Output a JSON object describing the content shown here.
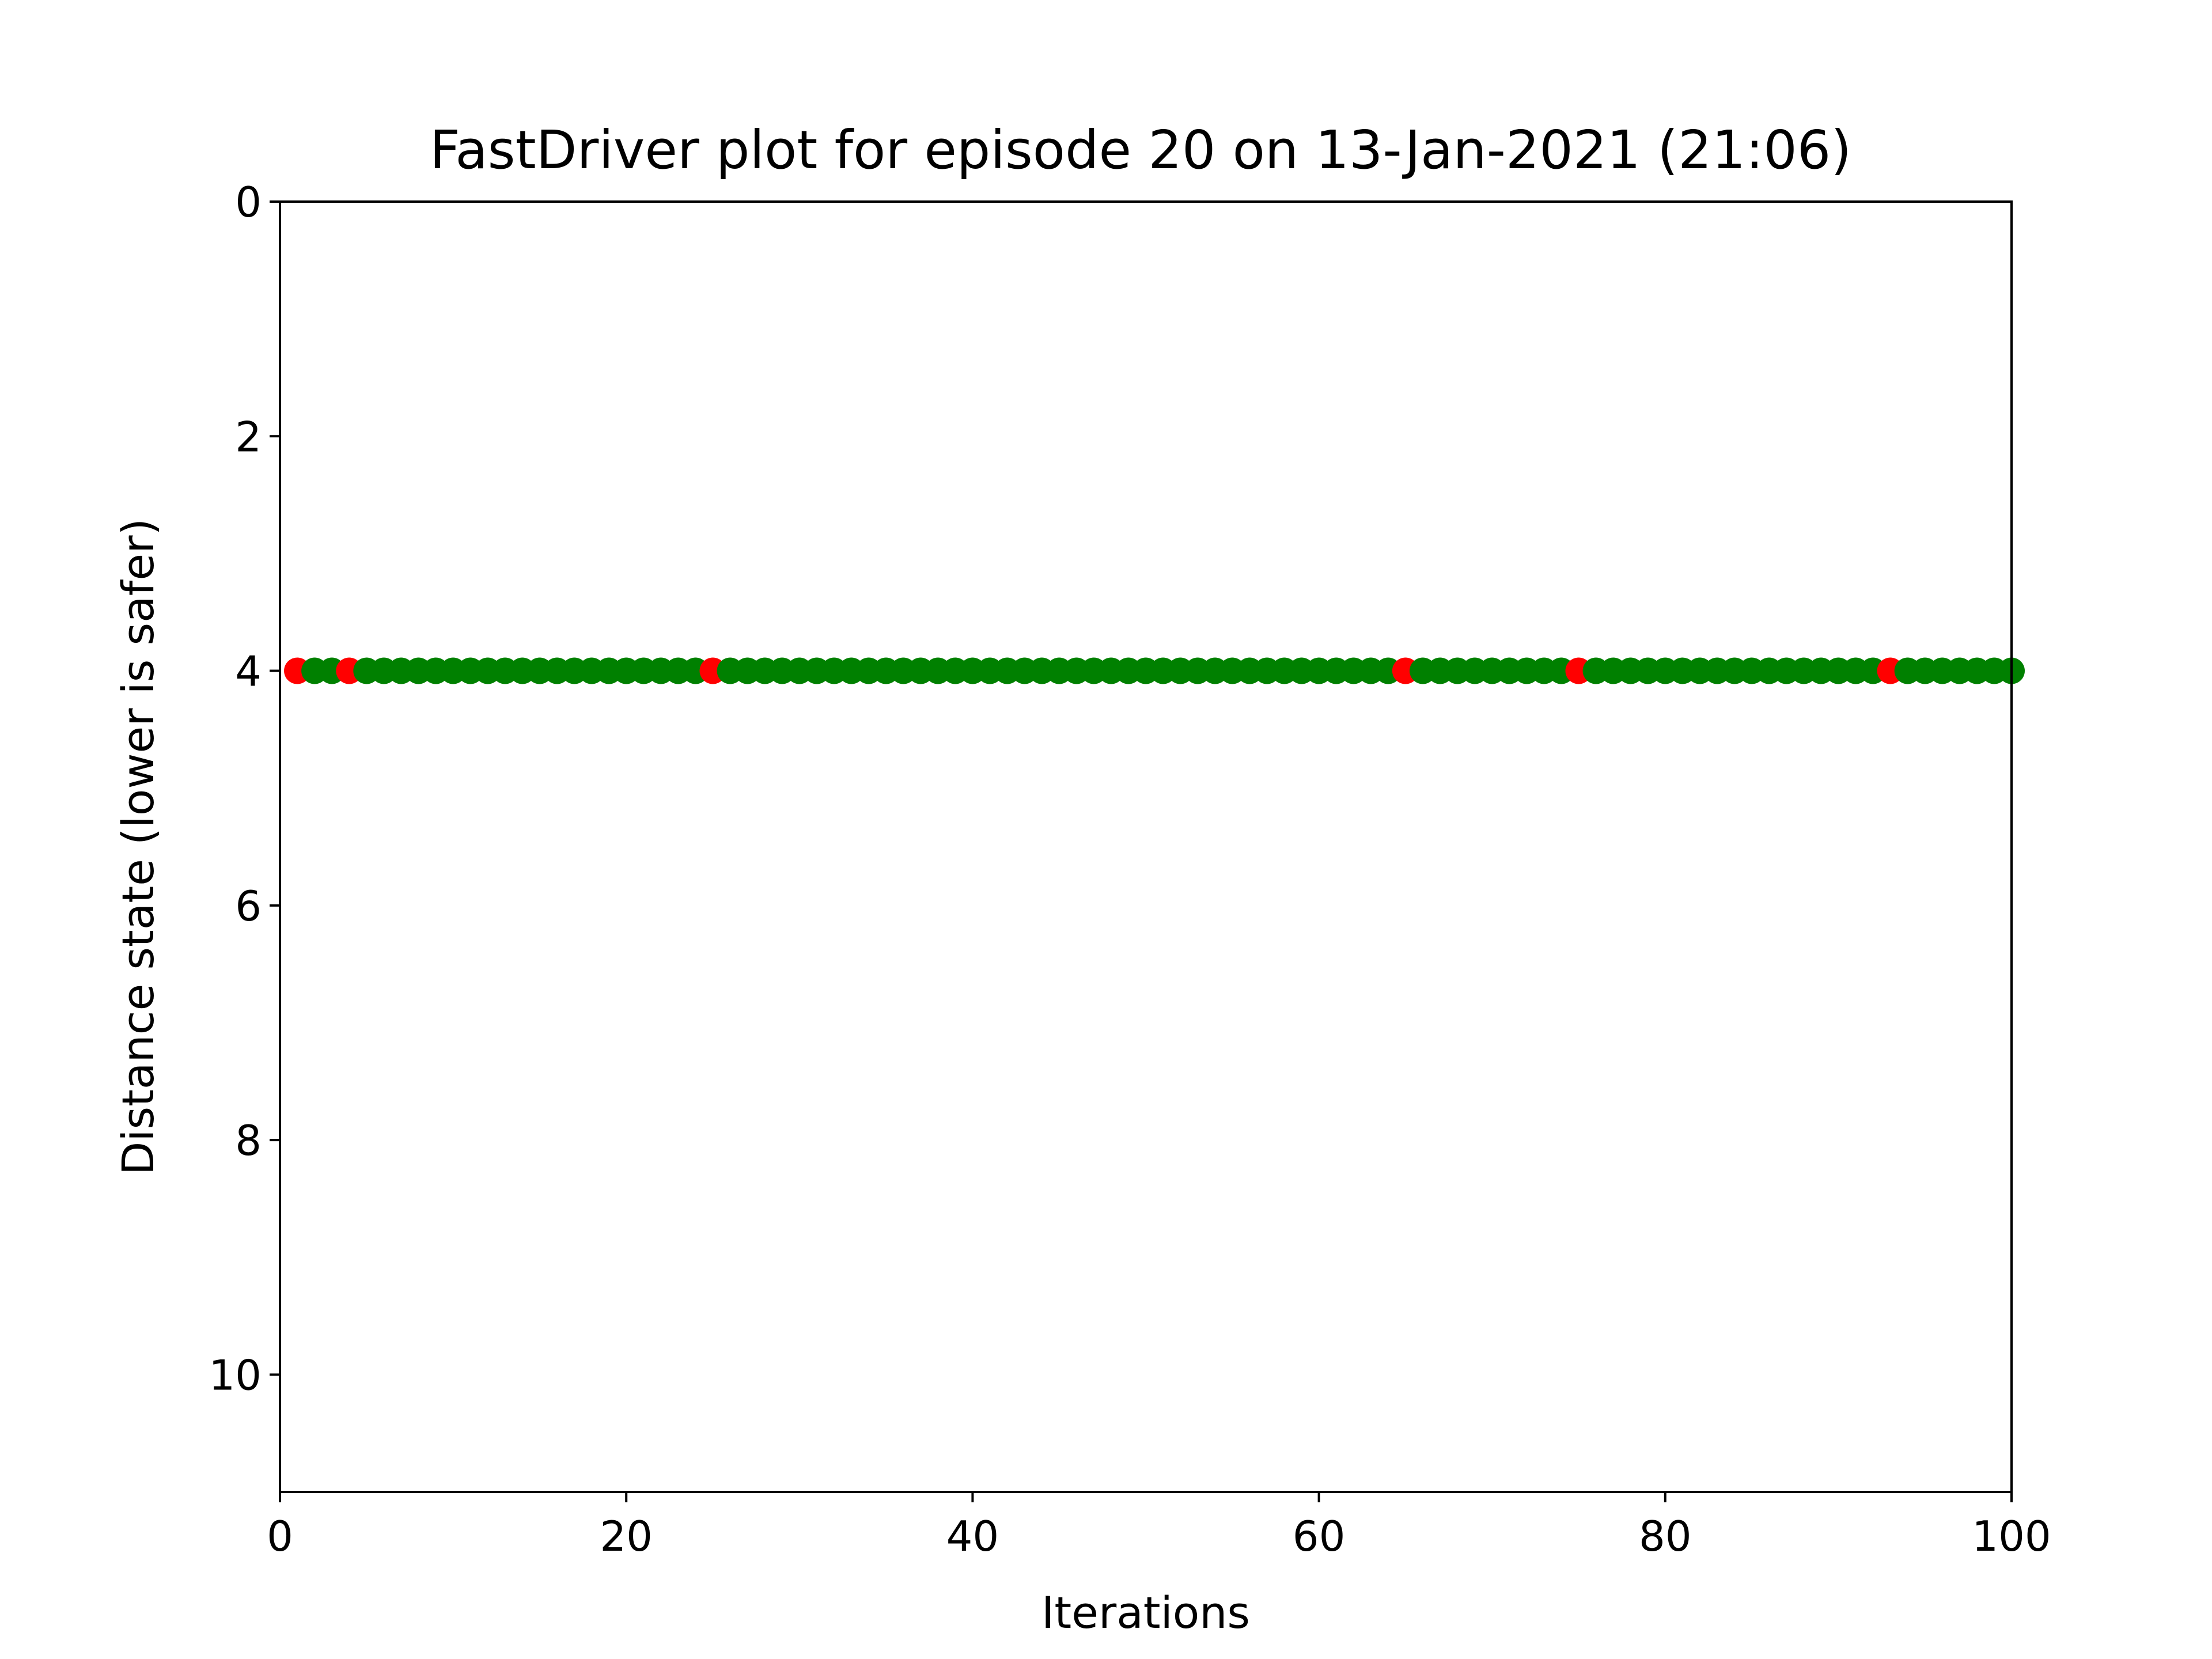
{
  "chart_data": {
    "type": "scatter",
    "title": "FastDriver plot for episode 20 on 13-Jan-2021 (21:06)",
    "xlabel": "Iterations",
    "ylabel": "Distance state (lower is safer)",
    "xlim": [
      0,
      100
    ],
    "ylim": [
      11,
      0
    ],
    "y_inverted": true,
    "xticks": [
      0,
      20,
      40,
      60,
      80,
      100
    ],
    "yticks": [
      0,
      2,
      4,
      6,
      8,
      10
    ],
    "grid": false,
    "legend": "none",
    "y": 4,
    "x_start": 1,
    "x_end": 100,
    "red_x": [
      1,
      4,
      25,
      65,
      75,
      93
    ],
    "colors": {
      "green": "#008000",
      "red": "#ff0000"
    }
  }
}
